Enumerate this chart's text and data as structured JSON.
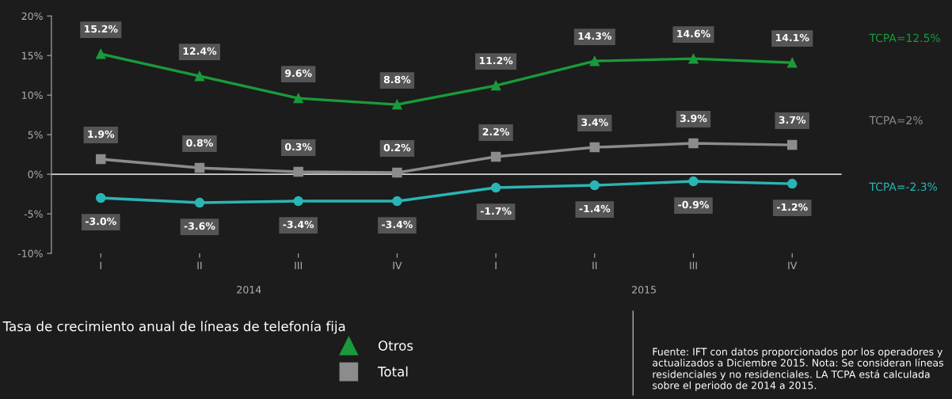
{
  "chart_data": {
    "type": "line",
    "title": "Tasa de crecimiento anual de líneas de telefonía fija",
    "categories": [
      "I",
      "II",
      "III",
      "IV",
      "I",
      "II",
      "III",
      "IV"
    ],
    "series": [
      {
        "name": "Otros",
        "color": "#1a9a3a",
        "marker": "triangle",
        "values": [
          15.2,
          12.4,
          9.6,
          8.8,
          11.2,
          14.3,
          14.6,
          14.1
        ],
        "value_labels": [
          "15.2%",
          "12.4%",
          "9.6%",
          "8.8%",
          "11.2%",
          "14.3%",
          "14.6%",
          "14.1%"
        ]
      },
      {
        "name": "Total",
        "color": "#8c8c8c",
        "marker": "square",
        "values": [
          1.9,
          0.8,
          0.3,
          0.2,
          2.2,
          3.4,
          3.9,
          3.7
        ],
        "value_labels": [
          "1.9%",
          "0.8%",
          "0.3%",
          "0.2%",
          "2.2%",
          "3.4%",
          "3.9%",
          "3.7%"
        ]
      },
      {
        "color": "#2ab5b5",
        "marker": "circle",
        "values": [
          -3.0,
          -3.6,
          -3.4,
          -3.4,
          -1.7,
          -1.4,
          -0.9,
          -1.2
        ],
        "value_labels": [
          "-3.0%",
          "-3.6%",
          "-3.4%",
          "-3.4%",
          "-1.7%",
          "-1.4%",
          "-0.9%",
          "-1.2%"
        ]
      }
    ],
    "ylim": [
      -10,
      20
    ],
    "yticks": [
      {
        "value": -10,
        "label": "-10%"
      },
      {
        "value": -5,
        "label": "-5%"
      },
      {
        "value": 0,
        "label": "0%"
      },
      {
        "value": 5,
        "label": "5%"
      },
      {
        "value": 10,
        "label": "10%"
      },
      {
        "value": 15,
        "label": "15%"
      },
      {
        "value": 20,
        "label": "20%"
      }
    ],
    "ref_lines": [
      {
        "axis": "y",
        "value": 0,
        "color": "#d0d0d0"
      }
    ],
    "grid": false,
    "legend": "bottom",
    "annotations": [
      "TCPA=12.5%",
      "TCPA=2%",
      "TCPA=-2.3%",
      "2014",
      "2015",
      "Fuente: IFT con datos proporcionados por los operadores y actualizados a Diciembre 2015. Nota: Se consideran líneas residenciales y no residenciales. LA TCPA está calculada sobre el periodo de 2014 a 2015."
    ]
  }
}
